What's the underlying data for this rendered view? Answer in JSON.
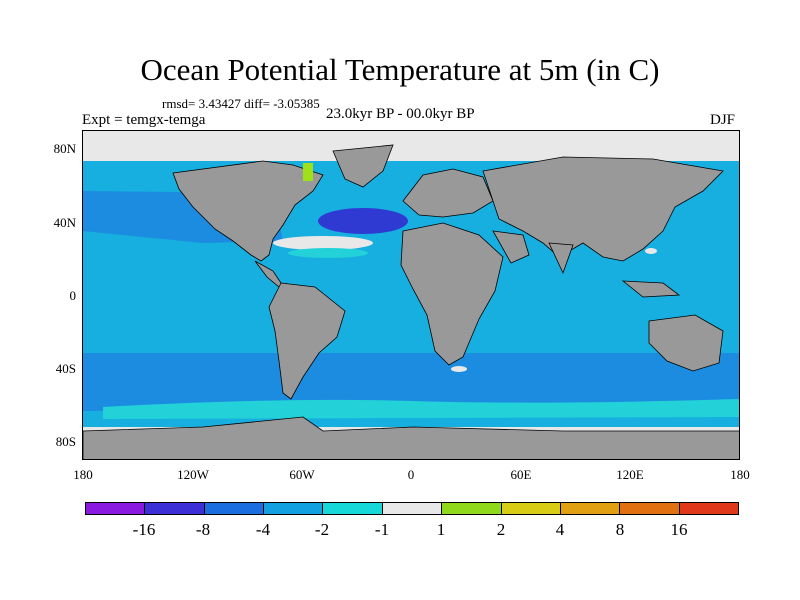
{
  "title": "Ocean Potential Temperature at 5m (in C)",
  "stats_line": "rmsd= 3.43427 diff= -3.05385",
  "experiment_label": "Expt = temgx-temga",
  "period_label": "23.0kyr BP - 00.0kyr BP",
  "season_label": "DJF",
  "y_ticks": [
    "80N",
    "40N",
    "0",
    "40S",
    "80S"
  ],
  "x_ticks": [
    "180",
    "120W",
    "60W",
    "0",
    "60E",
    "120E",
    "180"
  ],
  "colorbar": {
    "colors": [
      "#8a1adf",
      "#3c2fd6",
      "#1a6ee0",
      "#12a0e0",
      "#17d8d8",
      "#e8e8e8",
      "#8fd81a",
      "#d8cc14",
      "#e0a012",
      "#e07010",
      "#e0381a"
    ],
    "labels": [
      "-16",
      "-8",
      "-4",
      "-2",
      "-1",
      "1",
      "2",
      "4",
      "8",
      "16"
    ]
  },
  "map_colors": {
    "land": "#999999",
    "ocean": "#17aee0",
    "ocean_mid": "#1c8ce0",
    "ocean_deep": "#2f3ad2",
    "ocean_shallow": "#22d2d8",
    "sea_ice": "#e8e8e8",
    "warm": "#9ee01a"
  }
}
